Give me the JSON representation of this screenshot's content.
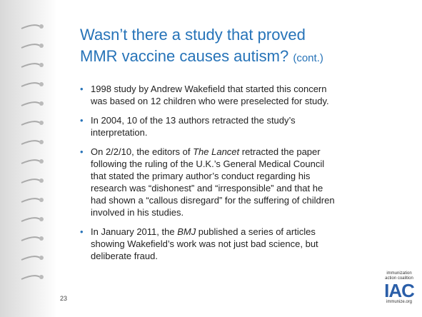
{
  "title": {
    "lines": [
      "Wasn’t there a study that proved",
      "MMR vaccine causes autism?"
    ],
    "suffix": "(cont.)"
  },
  "bullets": [
    [
      [
        "1998 study by Andrew Wakefield that started this concern"
      ],
      [
        "was based on 12 children who were preselected for study."
      ]
    ],
    [
      [
        "In 2004, 10 of the 13 authors retracted the study’s"
      ],
      [
        "interpretation."
      ]
    ],
    [
      [
        "On 2/2/10, the editors of ",
        {
          "text": "The Lancet",
          "italic": true
        },
        " retracted the paper"
      ],
      [
        "following the ruling of the U.K.’s General Medical Council"
      ],
      [
        "that stated the primary author’s conduct regarding his"
      ],
      [
        "research was “dishonest” and “irresponsible” and that he"
      ],
      [
        "had shown a “callous disregard” for the suffering of children"
      ],
      [
        "involved in his studies."
      ]
    ],
    [
      [
        "In January 2011, the ",
        {
          "text": "BMJ",
          "italic": true
        },
        " published a series of articles"
      ],
      [
        "showing Wakefield’s work was not just bad science, but"
      ],
      [
        "deliberate fraud."
      ]
    ]
  ],
  "page_number": "23",
  "logo": {
    "line1": "immunization",
    "line2": "action coalition",
    "mark": "IAC",
    "url": "immunize.org"
  }
}
